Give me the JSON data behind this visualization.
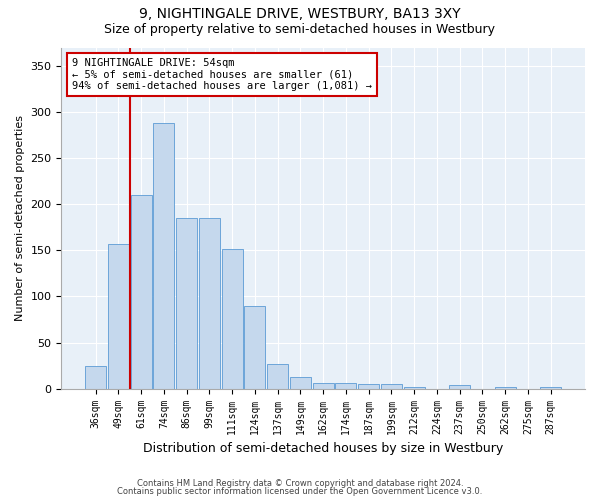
{
  "title1": "9, NIGHTINGALE DRIVE, WESTBURY, BA13 3XY",
  "title2": "Size of property relative to semi-detached houses in Westbury",
  "xlabel": "Distribution of semi-detached houses by size in Westbury",
  "ylabel": "Number of semi-detached properties",
  "categories": [
    "36sqm",
    "49sqm",
    "61sqm",
    "74sqm",
    "86sqm",
    "99sqm",
    "111sqm",
    "124sqm",
    "137sqm",
    "149sqm",
    "162sqm",
    "174sqm",
    "187sqm",
    "199sqm",
    "212sqm",
    "224sqm",
    "237sqm",
    "250sqm",
    "262sqm",
    "275sqm",
    "287sqm"
  ],
  "values": [
    25,
    157,
    210,
    288,
    185,
    185,
    152,
    90,
    27,
    13,
    6,
    6,
    5,
    5,
    2,
    0,
    4,
    0,
    2,
    0,
    2
  ],
  "bar_color": "#c5d8ed",
  "bar_edge_color": "#5b9bd5",
  "annotation_text": "9 NIGHTINGALE DRIVE: 54sqm\n← 5% of semi-detached houses are smaller (61)\n94% of semi-detached houses are larger (1,081) →",
  "annotation_box_color": "#ffffff",
  "annotation_box_edge": "#cc0000",
  "vline_color": "#cc0000",
  "vline_x": 1.5,
  "ylim": [
    0,
    370
  ],
  "yticks": [
    0,
    50,
    100,
    150,
    200,
    250,
    300,
    350
  ],
  "footer1": "Contains HM Land Registry data © Crown copyright and database right 2024.",
  "footer2": "Contains public sector information licensed under the Open Government Licence v3.0.",
  "plot_bg_color": "#e8f0f8",
  "title_fontsize": 10,
  "subtitle_fontsize": 9,
  "grid_color": "#ffffff"
}
